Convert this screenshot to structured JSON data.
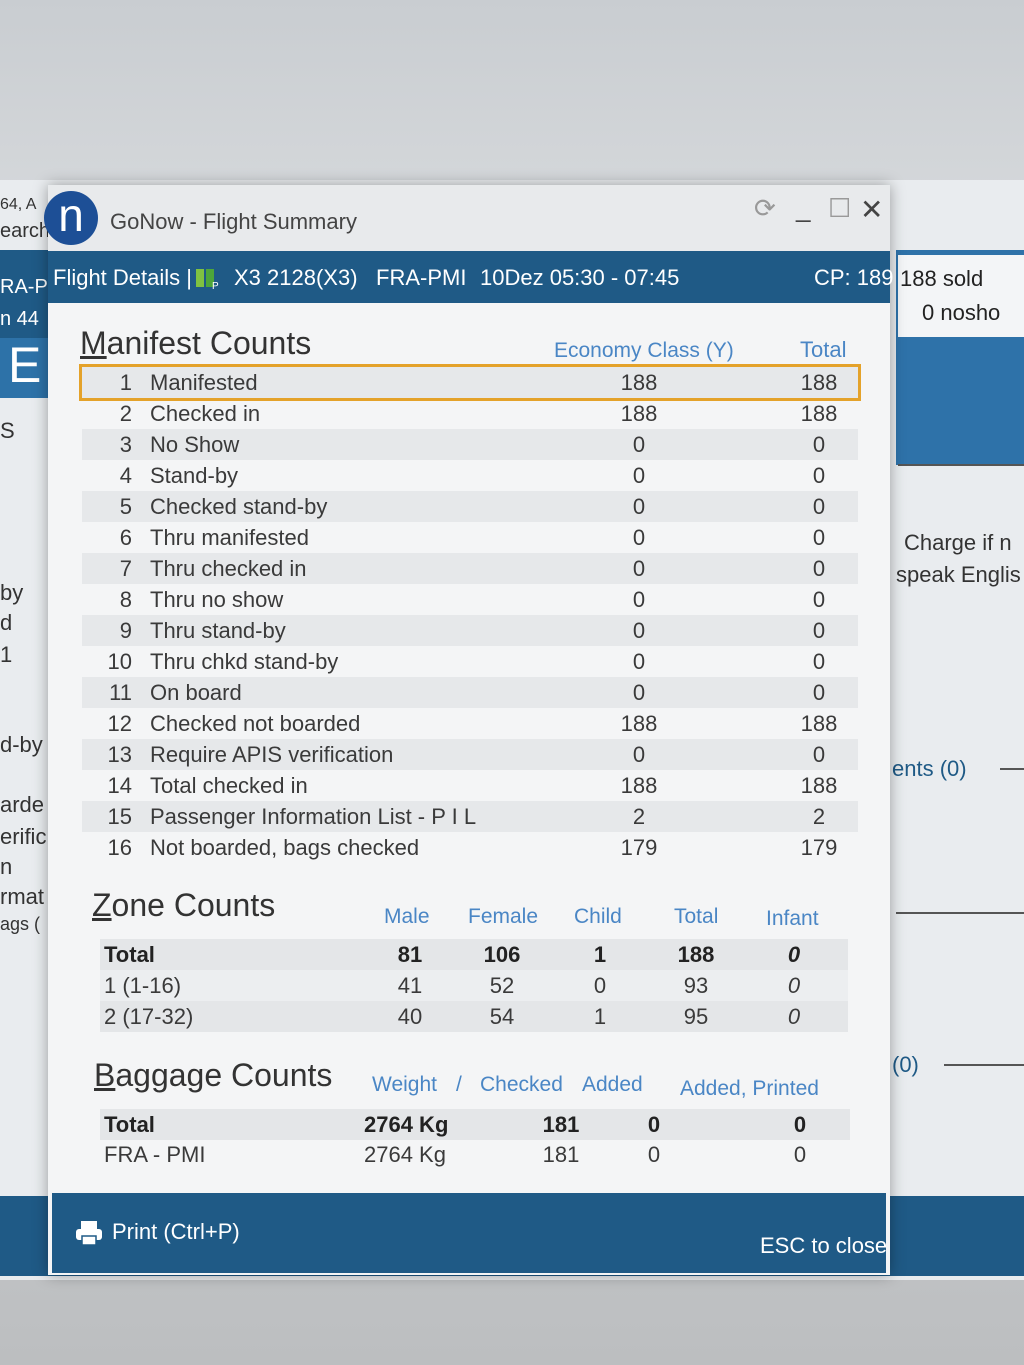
{
  "background": {
    "left_fragments": [
      "64, A",
      "earch",
      "RA-P",
      "n 44",
      "E",
      "S",
      "by",
      "d",
      "1",
      "d-by",
      "arde",
      "erific",
      "n",
      "rmat",
      "ags ("
    ],
    "right_fragments": [
      "188 sold",
      "0 nosho",
      "Charge if n",
      "speak Englis",
      "ents (0)",
      "(0)"
    ]
  },
  "window": {
    "logo_letter": "n",
    "title": "GoNow - Flight Summary",
    "controls": {
      "refresh": "⟳",
      "minimize": "_",
      "maximize": "☐",
      "close": "✕"
    }
  },
  "header": {
    "label": "Flight Details |",
    "flight": "X3 2128(X3)",
    "route": "FRA-PMI",
    "datetime": "10Dez 05:30 - 07:45",
    "cp": "CP: 189"
  },
  "manifest": {
    "title": "Manifest Counts",
    "col_class": "Economy Class (Y)",
    "col_total": "Total",
    "rows": [
      {
        "n": "1",
        "label": "Manifested",
        "y": "188",
        "total": "188"
      },
      {
        "n": "2",
        "label": "Checked in",
        "y": "188",
        "total": "188"
      },
      {
        "n": "3",
        "label": "No Show",
        "y": "0",
        "total": "0"
      },
      {
        "n": "4",
        "label": "Stand-by",
        "y": "0",
        "total": "0"
      },
      {
        "n": "5",
        "label": "Checked stand-by",
        "y": "0",
        "total": "0"
      },
      {
        "n": "6",
        "label": "Thru manifested",
        "y": "0",
        "total": "0"
      },
      {
        "n": "7",
        "label": "Thru checked in",
        "y": "0",
        "total": "0"
      },
      {
        "n": "8",
        "label": "Thru no show",
        "y": "0",
        "total": "0"
      },
      {
        "n": "9",
        "label": "Thru stand-by",
        "y": "0",
        "total": "0"
      },
      {
        "n": "10",
        "label": "Thru chkd stand-by",
        "y": "0",
        "total": "0"
      },
      {
        "n": "11",
        "label": "On board",
        "y": "0",
        "total": "0"
      },
      {
        "n": "12",
        "label": "Checked not boarded",
        "y": "188",
        "total": "188"
      },
      {
        "n": "13",
        "label": "Require APIS verification",
        "y": "0",
        "total": "0"
      },
      {
        "n": "14",
        "label": "Total checked in",
        "y": "188",
        "total": "188"
      },
      {
        "n": "15",
        "label": "Passenger Information List - P I L",
        "y": "2",
        "total": "2"
      },
      {
        "n": "16",
        "label": "Not boarded, bags checked",
        "y": "179",
        "total": "179"
      }
    ]
  },
  "zone": {
    "title": "Zone Counts",
    "columns": [
      "Male",
      "Female",
      "Child",
      "Total",
      "Infant"
    ],
    "rows": [
      {
        "label": "Total",
        "male": "81",
        "female": "106",
        "child": "1",
        "total": "188",
        "infant": "0"
      },
      {
        "label": "1 (1-16)",
        "male": "41",
        "female": "52",
        "child": "0",
        "total": "93",
        "infant": "0"
      },
      {
        "label": "2 (17-32)",
        "male": "40",
        "female": "54",
        "child": "1",
        "total": "95",
        "infant": "0"
      }
    ]
  },
  "baggage": {
    "title": "Baggage Counts",
    "columns": [
      "Weight",
      "/",
      "Checked",
      "Added",
      "Added, Printed"
    ],
    "rows": [
      {
        "label": "Total",
        "weight": "2764 Kg",
        "checked": "181",
        "added": "0",
        "printed": "0"
      },
      {
        "label": "FRA - PMI",
        "weight": "2764 Kg",
        "checked": "181",
        "added": "0",
        "printed": "0"
      }
    ]
  },
  "footer": {
    "print_label": "Print (Ctrl+P)",
    "close_label": "ESC to close"
  }
}
